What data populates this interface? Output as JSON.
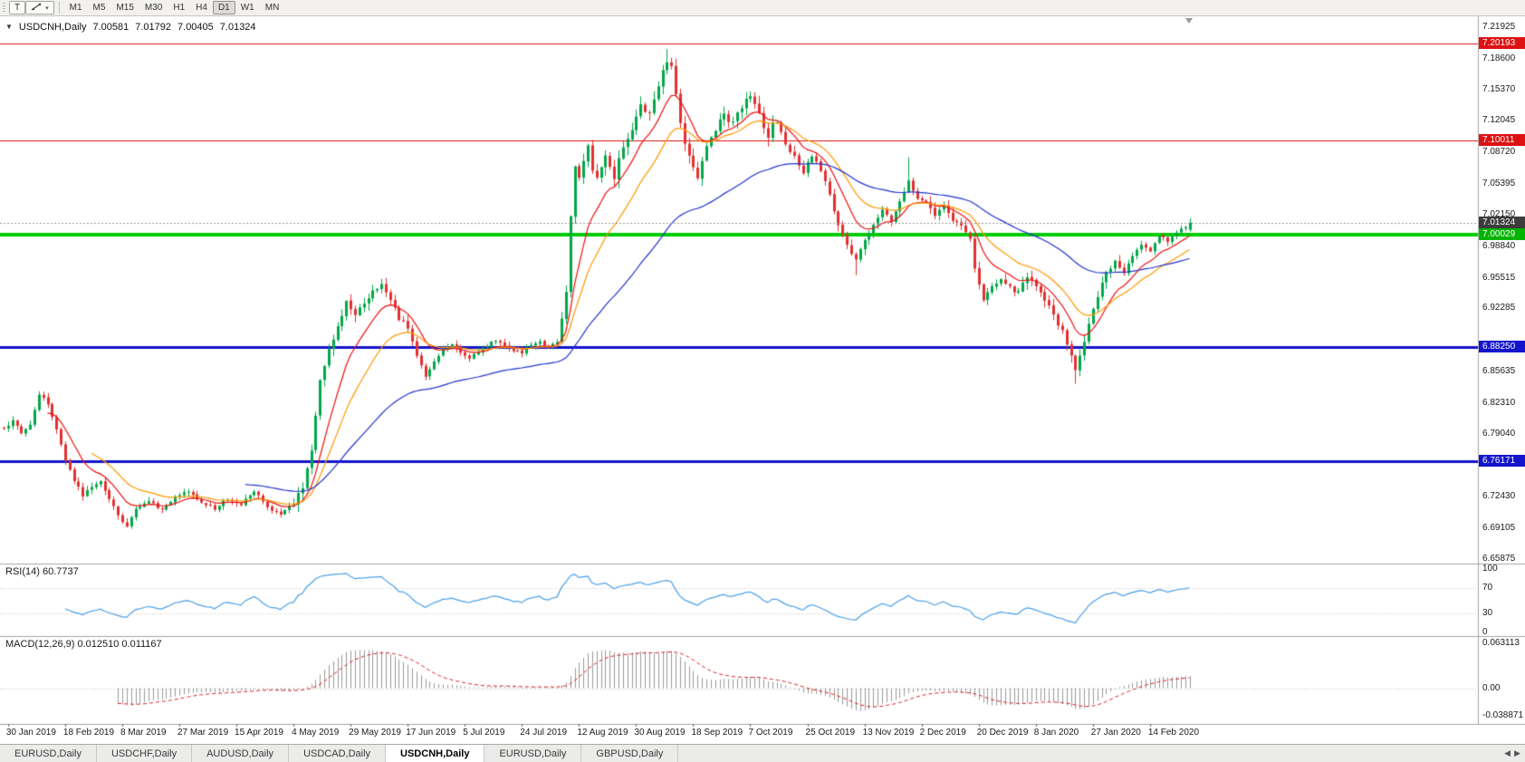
{
  "toolbar": {
    "templates_label": "T",
    "draw_caret": "▾",
    "timeframes": [
      "M1",
      "M5",
      "M15",
      "M30",
      "H1",
      "H4",
      "D1",
      "W1",
      "MN"
    ],
    "active_timeframe": "D1"
  },
  "chart_header": {
    "collapse_marker": "▼",
    "symbol": "USDCNH,Daily",
    "open": "7.00581",
    "high": "7.01792",
    "low": "7.00405",
    "close": "7.01324"
  },
  "price_axis": {
    "ticks": [
      "7.21925",
      "7.18600",
      "7.15370",
      "7.12045",
      "7.08720",
      "7.05395",
      "7.02150",
      "6.98840",
      "6.95515",
      "6.92285",
      "6.88250",
      "6.85635",
      "6.82310",
      "6.79040",
      "6.75955",
      "6.72430",
      "6.69105",
      "6.65875"
    ],
    "tags": [
      {
        "text": "7.20193",
        "bg": "#dd1111",
        "fg": "#ffffff"
      },
      {
        "text": "7.10011",
        "bg": "#dd1111",
        "fg": "#ffffff"
      },
      {
        "text": "7.01324",
        "bg": "#3c3c3c",
        "fg": "#ffffff"
      },
      {
        "text": "7.00029",
        "bg": "#00b400",
        "fg": "#ffffff"
      },
      {
        "text": "6.88250",
        "bg": "#1414cc",
        "fg": "#ffffff"
      },
      {
        "text": "6.76171",
        "bg": "#1414cc",
        "fg": "#ffffff"
      }
    ]
  },
  "rsi_pane": {
    "title": "RSI(14) 60.7737",
    "levels": [
      {
        "text": "100",
        "value": 100
      },
      {
        "text": "70",
        "value": 70
      },
      {
        "text": "30",
        "value": 30
      },
      {
        "text": "0",
        "value": 0
      }
    ]
  },
  "macd_pane": {
    "title": "MACD(12,26,9) 0.012510 0.011167",
    "levels": [
      {
        "text": "0.063113",
        "value": 0.063113
      },
      {
        "text": "0.00",
        "value": 0
      },
      {
        "text": "-0.038871",
        "value": -0.038871
      }
    ]
  },
  "date_axis": {
    "labels": [
      "30 Jan 2019",
      "18 Feb 2019",
      "8 Mar 2019",
      "27 Mar 2019",
      "15 Apr 2019",
      "4 May 2019",
      "29 May 2019",
      "17 Jun 2019",
      "5 Jul 2019",
      "24 Jul 2019",
      "12 Aug 2019",
      "30 Aug 2019",
      "18 Sep 2019",
      "7 Oct 2019",
      "25 Oct 2019",
      "13 Nov 2019",
      "2 Dec 2019",
      "20 Dec 2019",
      "8 Jan 2020",
      "27 Jan 2020",
      "14 Feb 2020"
    ]
  },
  "tabs": {
    "items": [
      "EURUSD,Daily",
      "USDCHF,Daily",
      "AUDUSD,Daily",
      "USDCAD,Daily",
      "USDCNH,Daily",
      "EURUSD,Daily",
      "GBPUSD,Daily"
    ],
    "active_index": 4,
    "scroll_left": "◀",
    "scroll_right": "▶"
  },
  "chart_data": {
    "type": "candlestick",
    "symbol": "USDCNH",
    "period": "Daily",
    "bars": 271,
    "y_axis": {
      "top_tick": 7.21925,
      "bottom_tick": 6.65875
    },
    "last_bar_ohlc": {
      "open": 7.00581,
      "high": 7.01792,
      "low": 7.00405,
      "close": 7.01324
    },
    "up_color": "#00a847",
    "down_color": "#e33030",
    "horizontal_lines": [
      {
        "price": 7.20193,
        "color": "#dd1111",
        "width": 1
      },
      {
        "price": 7.10011,
        "color": "#dd1111",
        "width": 1
      },
      {
        "price": 7.00029,
        "color": "#00cc00",
        "width": 4
      },
      {
        "price": 6.8825,
        "color": "#1414cc",
        "width": 3
      },
      {
        "price": 6.76171,
        "color": "#1414cc",
        "width": 3
      }
    ],
    "current_price_line": {
      "price": 7.01324,
      "color": "#999999"
    },
    "moving_averages": [
      {
        "period": 10,
        "color": "#ee1111"
      },
      {
        "period": 20,
        "color": "#ff9900"
      },
      {
        "period": 55,
        "color": "#2233cc"
      }
    ],
    "rsi": {
      "period": 14,
      "current": 60.7737,
      "color": "#4aa0e8",
      "levels": [
        70,
        30
      ],
      "range": [
        0,
        100
      ]
    },
    "macd": {
      "fast": 12,
      "slow": 26,
      "signal_period": 9,
      "current_macd": 0.01251,
      "current_signal": 0.011167,
      "histogram_color": "#9a9a9a",
      "signal_color": "#dd2222",
      "range": [
        -0.038871,
        0.063113
      ]
    },
    "close_anchors": [
      [
        0,
        6.795
      ],
      [
        2,
        6.806
      ],
      [
        4,
        6.792
      ],
      [
        6,
        6.8
      ],
      [
        8,
        6.833
      ],
      [
        10,
        6.822
      ],
      [
        12,
        6.795
      ],
      [
        14,
        6.762
      ],
      [
        16,
        6.742
      ],
      [
        18,
        6.726
      ],
      [
        20,
        6.734
      ],
      [
        22,
        6.742
      ],
      [
        24,
        6.722
      ],
      [
        26,
        6.705
      ],
      [
        28,
        6.692
      ],
      [
        30,
        6.712
      ],
      [
        33,
        6.72
      ],
      [
        36,
        6.71
      ],
      [
        39,
        6.724
      ],
      [
        42,
        6.73
      ],
      [
        45,
        6.718
      ],
      [
        48,
        6.712
      ],
      [
        51,
        6.722
      ],
      [
        54,
        6.716
      ],
      [
        57,
        6.731
      ],
      [
        60,
        6.713
      ],
      [
        63,
        6.706
      ],
      [
        66,
        6.718
      ],
      [
        68,
        6.734
      ],
      [
        70,
        6.775
      ],
      [
        72,
        6.845
      ],
      [
        74,
        6.878
      ],
      [
        76,
        6.902
      ],
      [
        78,
        6.93
      ],
      [
        80,
        6.917
      ],
      [
        82,
        6.928
      ],
      [
        84,
        6.94
      ],
      [
        86,
        6.948
      ],
      [
        88,
        6.932
      ],
      [
        90,
        6.912
      ],
      [
        92,
        6.902
      ],
      [
        94,
        6.872
      ],
      [
        96,
        6.852
      ],
      [
        98,
        6.868
      ],
      [
        100,
        6.88
      ],
      [
        102,
        6.884
      ],
      [
        104,
        6.876
      ],
      [
        106,
        6.869
      ],
      [
        108,
        6.878
      ],
      [
        110,
        6.884
      ],
      [
        112,
        6.889
      ],
      [
        114,
        6.884
      ],
      [
        116,
        6.879
      ],
      [
        118,
        6.876
      ],
      [
        120,
        6.884
      ],
      [
        122,
        6.887
      ],
      [
        124,
        6.881
      ],
      [
        126,
        6.888
      ],
      [
        128,
        6.942
      ],
      [
        129,
        7.02
      ],
      [
        130,
        7.072
      ],
      [
        131,
        7.058
      ],
      [
        132,
        7.078
      ],
      [
        133,
        7.092
      ],
      [
        134,
        7.07
      ],
      [
        135,
        7.058
      ],
      [
        136,
        7.072
      ],
      [
        137,
        7.086
      ],
      [
        138,
        7.07
      ],
      [
        139,
        7.062
      ],
      [
        140,
        7.082
      ],
      [
        141,
        7.092
      ],
      [
        142,
        7.1
      ],
      [
        143,
        7.112
      ],
      [
        144,
        7.124
      ],
      [
        145,
        7.14
      ],
      [
        146,
        7.132
      ],
      [
        147,
        7.128
      ],
      [
        148,
        7.145
      ],
      [
        149,
        7.158
      ],
      [
        150,
        7.172
      ],
      [
        151,
        7.185
      ],
      [
        152,
        7.176
      ],
      [
        153,
        7.15
      ],
      [
        154,
        7.118
      ],
      [
        155,
        7.098
      ],
      [
        156,
        7.082
      ],
      [
        157,
        7.072
      ],
      [
        158,
        7.062
      ],
      [
        159,
        7.078
      ],
      [
        160,
        7.094
      ],
      [
        161,
        7.104
      ],
      [
        162,
        7.112
      ],
      [
        163,
        7.12
      ],
      [
        164,
        7.126
      ],
      [
        165,
        7.118
      ],
      [
        166,
        7.122
      ],
      [
        167,
        7.13
      ],
      [
        168,
        7.136
      ],
      [
        169,
        7.142
      ],
      [
        170,
        7.147
      ],
      [
        171,
        7.138
      ],
      [
        172,
        7.128
      ],
      [
        173,
        7.112
      ],
      [
        174,
        7.104
      ],
      [
        175,
        7.116
      ],
      [
        176,
        7.12
      ],
      [
        177,
        7.106
      ],
      [
        178,
        7.094
      ],
      [
        180,
        7.082
      ],
      [
        182,
        7.066
      ],
      [
        184,
        7.084
      ],
      [
        186,
        7.068
      ],
      [
        188,
        7.042
      ],
      [
        190,
        7.012
      ],
      [
        192,
        6.99
      ],
      [
        194,
        6.974
      ],
      [
        196,
        6.994
      ],
      [
        198,
        7.012
      ],
      [
        200,
        7.026
      ],
      [
        202,
        7.016
      ],
      [
        204,
        7.036
      ],
      [
        206,
        7.056
      ],
      [
        208,
        7.038
      ],
      [
        210,
        7.034
      ],
      [
        212,
        7.022
      ],
      [
        214,
        7.03
      ],
      [
        216,
        7.016
      ],
      [
        218,
        7.008
      ],
      [
        220,
        6.996
      ],
      [
        221,
        6.966
      ],
      [
        223,
        6.932
      ],
      [
        225,
        6.946
      ],
      [
        227,
        6.954
      ],
      [
        229,
        6.944
      ],
      [
        231,
        6.94
      ],
      [
        233,
        6.956
      ],
      [
        235,
        6.948
      ],
      [
        237,
        6.932
      ],
      [
        239,
        6.916
      ],
      [
        241,
        6.898
      ],
      [
        243,
        6.872
      ],
      [
        244,
        6.856
      ],
      [
        245,
        6.872
      ],
      [
        247,
        6.908
      ],
      [
        249,
        6.936
      ],
      [
        251,
        6.96
      ],
      [
        253,
        6.974
      ],
      [
        255,
        6.962
      ],
      [
        257,
        6.978
      ],
      [
        259,
        6.99
      ],
      [
        261,
        6.984
      ],
      [
        263,
        7.0
      ],
      [
        265,
        6.994
      ],
      [
        267,
        7.004
      ],
      [
        269,
        7.008
      ],
      [
        270,
        7.013
      ]
    ],
    "vol_zones": [
      [
        0,
        65,
        0.0032
      ],
      [
        66,
        92,
        0.0058
      ],
      [
        93,
        126,
        0.0032
      ],
      [
        127,
        178,
        0.0068
      ],
      [
        179,
        215,
        0.0046
      ],
      [
        216,
        256,
        0.0055
      ],
      [
        257,
        270,
        0.0032
      ]
    ],
    "overrides": {
      "151": {
        "h": 7.1962
      },
      "194": {
        "l": 6.958
      },
      "206": {
        "h": 7.082
      },
      "244": {
        "l": 6.8435
      },
      "270": {
        "o": 7.00581,
        "h": 7.01792,
        "l": 7.00405,
        "c": 7.01324
      }
    }
  }
}
